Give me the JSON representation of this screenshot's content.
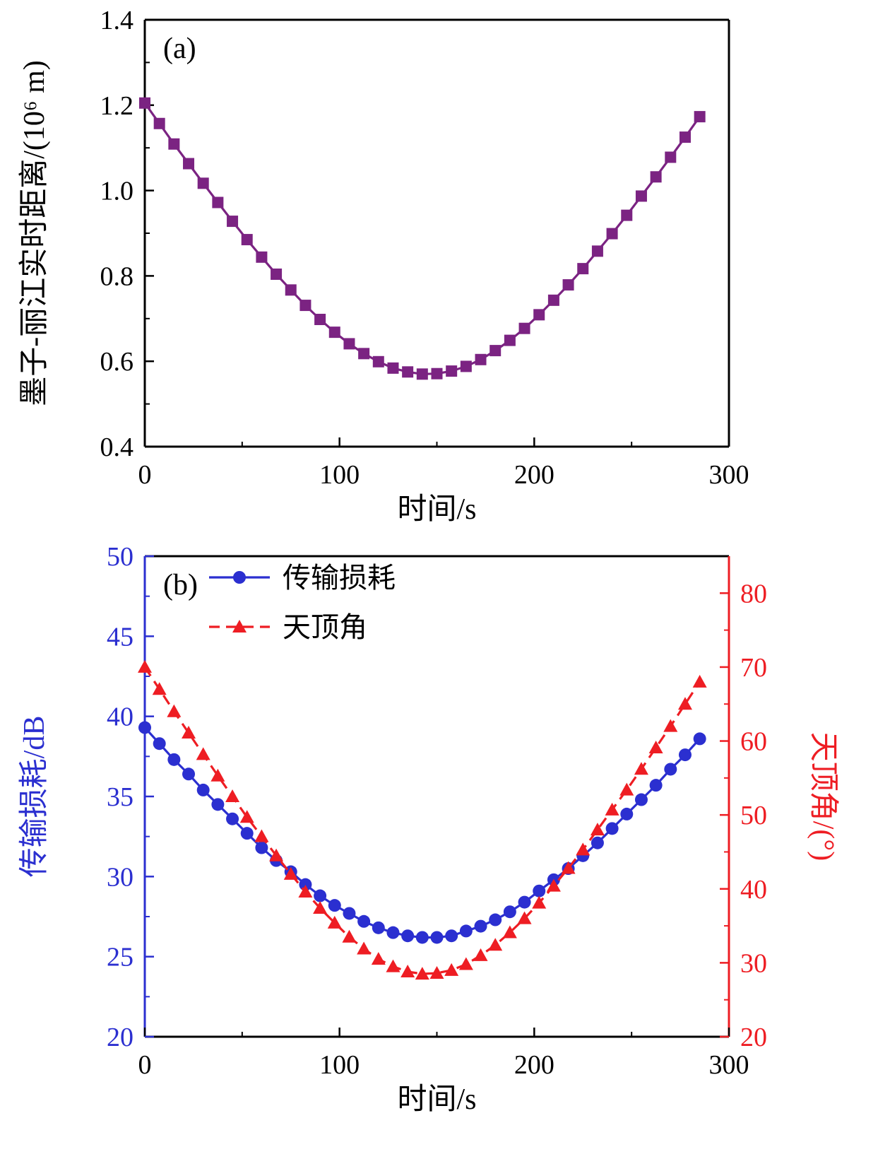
{
  "page": {
    "background": "#ffffff"
  },
  "chart_data": [
    {
      "id": "chart-a",
      "type": "line",
      "panel_label": "(a)",
      "xlabel": "时间/s",
      "ylabel": "墨子-丽江实时距离/(10⁶ m)",
      "xlim": [
        0,
        300
      ],
      "ylim": [
        0.4,
        1.4
      ],
      "xticks": [
        0,
        100,
        200,
        300
      ],
      "yticks": [
        "0.4",
        "0.6",
        "0.8",
        "1.0",
        "1.2",
        "1.4"
      ],
      "x_minor_step": 50,
      "y_minor_step_left": 0.1,
      "grid": false,
      "series": [
        {
          "name": "墨子-丽江实时距离",
          "color": "#7b2382",
          "marker": "square",
          "line": "solid",
          "axis": "left",
          "x": [
            0,
            7.5,
            15,
            22.5,
            30,
            37.5,
            45,
            52.5,
            60,
            67.5,
            75,
            82.5,
            90,
            97.5,
            105,
            112.5,
            120,
            127.5,
            135,
            142.5,
            150,
            157.5,
            165,
            172.5,
            180,
            187.5,
            195,
            202.5,
            210,
            217.5,
            225,
            232.5,
            240,
            247.5,
            255,
            262.5,
            270,
            277.5,
            285
          ],
          "y": [
            1.205,
            1.157,
            1.109,
            1.063,
            1.017,
            0.972,
            0.928,
            0.885,
            0.844,
            0.804,
            0.767,
            0.731,
            0.698,
            0.668,
            0.641,
            0.618,
            0.599,
            0.584,
            0.575,
            0.57,
            0.571,
            0.577,
            0.588,
            0.604,
            0.625,
            0.649,
            0.677,
            0.709,
            0.743,
            0.779,
            0.817,
            0.858,
            0.899,
            0.942,
            0.987,
            1.032,
            1.078,
            1.125,
            1.173
          ]
        }
      ]
    },
    {
      "id": "chart-b",
      "type": "line",
      "panel_label": "(b)",
      "xlabel": "时间/s",
      "ylabel_left": "传输损耗/dB",
      "ylabel_right": "天顶角/(°)",
      "xlim": [
        0,
        300
      ],
      "ylim_left": [
        20,
        50
      ],
      "ylim_right": [
        20,
        85
      ],
      "xticks": [
        0,
        100,
        200,
        300
      ],
      "yticks_left": [
        20,
        25,
        30,
        35,
        40,
        45,
        50
      ],
      "yticks_right": [
        20,
        30,
        40,
        50,
        60,
        70,
        80
      ],
      "x_minor_step": 50,
      "y_minor_step_left": 2.5,
      "y_minor_step_right": 5,
      "axis_color_left": "#2b2fd0",
      "axis_color_right": "#ee1d23",
      "grid": false,
      "legend": [
        {
          "label": "传输损耗",
          "series": 0
        },
        {
          "label": "天顶角",
          "series": 1
        }
      ],
      "series": [
        {
          "name": "传输损耗",
          "color": "#2b2fd0",
          "marker": "circle",
          "line": "solid",
          "axis": "left",
          "x": [
            0,
            7.5,
            15,
            22.5,
            30,
            37.5,
            45,
            52.5,
            60,
            67.5,
            75,
            82.5,
            90,
            97.5,
            105,
            112.5,
            120,
            127.5,
            135,
            142.5,
            150,
            157.5,
            165,
            172.5,
            180,
            187.5,
            195,
            202.5,
            210,
            217.5,
            225,
            232.5,
            240,
            247.5,
            255,
            262.5,
            270,
            277.5,
            285
          ],
          "y": [
            39.3,
            38.3,
            37.3,
            36.4,
            35.4,
            34.5,
            33.6,
            32.7,
            31.8,
            31.0,
            30.3,
            29.5,
            28.8,
            28.2,
            27.7,
            27.2,
            26.8,
            26.5,
            26.3,
            26.2,
            26.2,
            26.3,
            26.6,
            26.9,
            27.3,
            27.8,
            28.4,
            29.1,
            29.8,
            30.5,
            31.3,
            32.1,
            33.0,
            33.9,
            34.8,
            35.7,
            36.7,
            37.6,
            38.6
          ]
        },
        {
          "name": "天顶角",
          "color": "#ee1d23",
          "marker": "triangle",
          "line": "dashed",
          "axis": "right",
          "x": [
            0,
            7.5,
            15,
            22.5,
            30,
            37.5,
            45,
            52.5,
            60,
            67.5,
            75,
            82.5,
            90,
            97.5,
            105,
            112.5,
            120,
            127.5,
            135,
            142.5,
            150,
            157.5,
            165,
            172.5,
            180,
            187.5,
            195,
            202.5,
            210,
            217.5,
            225,
            232.5,
            240,
            247.5,
            255,
            262.5,
            270,
            277.5,
            285
          ],
          "y": [
            70.0,
            67.0,
            64.0,
            61.1,
            58.2,
            55.3,
            52.5,
            49.7,
            47.1,
            44.5,
            42.0,
            39.6,
            37.4,
            35.4,
            33.5,
            31.9,
            30.5,
            29.5,
            28.8,
            28.5,
            28.6,
            29.0,
            29.8,
            31.0,
            32.4,
            34.1,
            36.0,
            38.1,
            40.4,
            42.8,
            45.3,
            48.0,
            50.7,
            53.4,
            56.2,
            59.1,
            62.0,
            65.0,
            68.0
          ]
        }
      ]
    }
  ]
}
